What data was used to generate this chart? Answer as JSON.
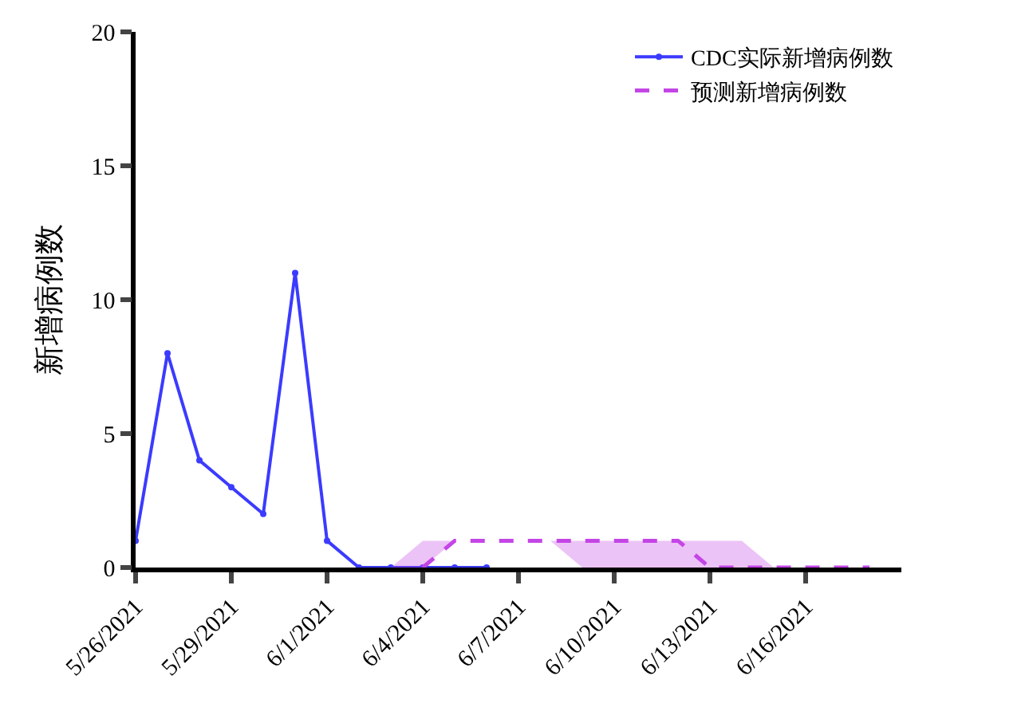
{
  "chart_data": {
    "type": "line",
    "ylabel": "新增病例数",
    "legend": "top right",
    "xlim": [
      "2021-05-26",
      "2021-06-19"
    ],
    "xticks": [
      {
        "value": "2021-05-26",
        "label": "5/26/2021"
      },
      {
        "value": "2021-05-29",
        "label": "5/29/2021"
      },
      {
        "value": "2021-06-01",
        "label": "6/1/2021"
      },
      {
        "value": "2021-06-04",
        "label": "6/4/2021"
      },
      {
        "value": "2021-06-07",
        "label": "6/7/2021"
      },
      {
        "value": "2021-06-10",
        "label": "6/10/2021"
      },
      {
        "value": "2021-06-13",
        "label": "6/13/2021"
      },
      {
        "value": "2021-06-16",
        "label": "6/16/2021"
      }
    ],
    "ylim": [
      0,
      20
    ],
    "yticks": [
      0,
      5,
      10,
      15,
      20
    ],
    "series": [
      {
        "name": "CDC实际新增病例数",
        "color": "#3b3bff",
        "marker": "circle",
        "line_style": "solid",
        "x": [
          "2021-05-26",
          "2021-05-27",
          "2021-05-28",
          "2021-05-29",
          "2021-05-30",
          "2021-05-31",
          "2021-06-01",
          "2021-06-02",
          "2021-06-03",
          "2021-06-04",
          "2021-06-05",
          "2021-06-06"
        ],
        "values": [
          1,
          8,
          4,
          3,
          2,
          11,
          1,
          0,
          0,
          0,
          0,
          0
        ]
      },
      {
        "name": "预测新增病例数",
        "color": "#c445e6",
        "marker": "none",
        "line_style": "dashed",
        "x": [
          "2021-06-03",
          "2021-06-04",
          "2021-06-05",
          "2021-06-06",
          "2021-06-07",
          "2021-06-08",
          "2021-06-09",
          "2021-06-10",
          "2021-06-11",
          "2021-06-12",
          "2021-06-13",
          "2021-06-14",
          "2021-06-15",
          "2021-06-16",
          "2021-06-17",
          "2021-06-18"
        ],
        "values": [
          null,
          0,
          1,
          1,
          1,
          1,
          1,
          1,
          1,
          1,
          0,
          0,
          0,
          0,
          0,
          0
        ],
        "lower": [
          0,
          0,
          1,
          1,
          1,
          1,
          0,
          0,
          0,
          0,
          0,
          0,
          0,
          0,
          0,
          0
        ],
        "upper": [
          0,
          1,
          1,
          1,
          1,
          1,
          1,
          1,
          1,
          1,
          1,
          1,
          0,
          0,
          0,
          0
        ]
      }
    ]
  }
}
